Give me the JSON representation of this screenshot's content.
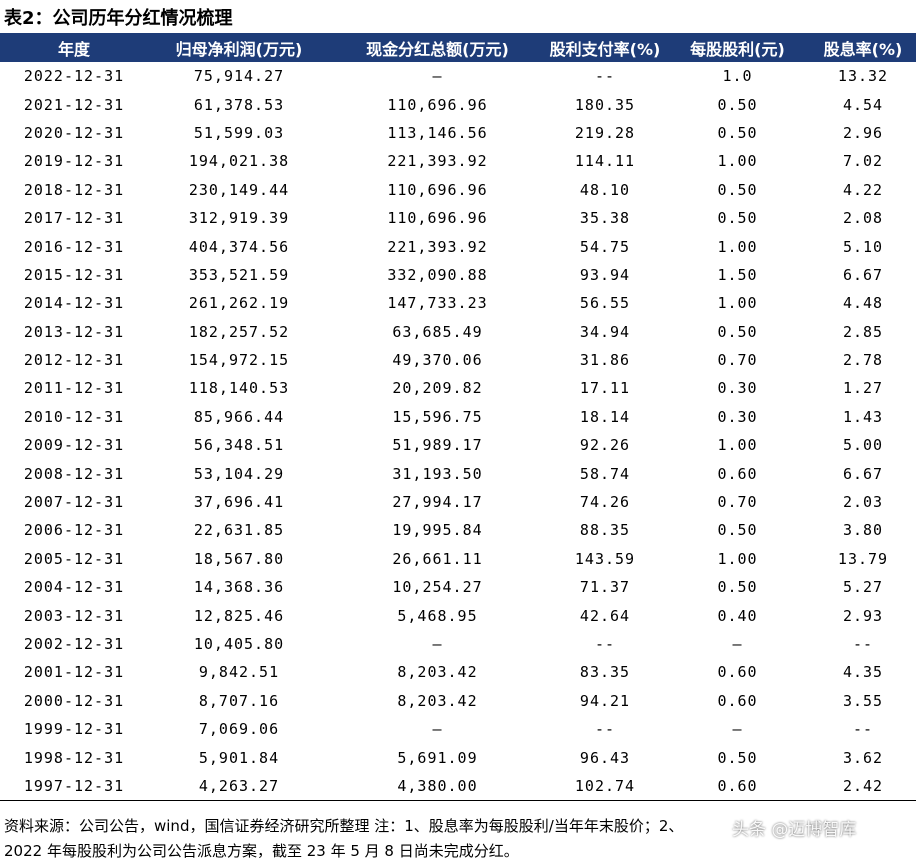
{
  "title": "表2：公司历年分红情况梳理",
  "table": {
    "header": [
      "年度",
      "归母净利润(万元)",
      "现金分红总额(万元)",
      "股利支付率(%)",
      "每股股利(元)",
      "股息率(%)"
    ],
    "rows": [
      [
        "2022-12-31",
        "75,914.27",
        "—",
        "--",
        "1.0",
        "13.32"
      ],
      [
        "2021-12-31",
        "61,378.53",
        "110,696.96",
        "180.35",
        "0.50",
        "4.54"
      ],
      [
        "2020-12-31",
        "51,599.03",
        "113,146.56",
        "219.28",
        "0.50",
        "2.96"
      ],
      [
        "2019-12-31",
        "194,021.38",
        "221,393.92",
        "114.11",
        "1.00",
        "7.02"
      ],
      [
        "2018-12-31",
        "230,149.44",
        "110,696.96",
        "48.10",
        "0.50",
        "4.22"
      ],
      [
        "2017-12-31",
        "312,919.39",
        "110,696.96",
        "35.38",
        "0.50",
        "2.08"
      ],
      [
        "2016-12-31",
        "404,374.56",
        "221,393.92",
        "54.75",
        "1.00",
        "5.10"
      ],
      [
        "2015-12-31",
        "353,521.59",
        "332,090.88",
        "93.94",
        "1.50",
        "6.67"
      ],
      [
        "2014-12-31",
        "261,262.19",
        "147,733.23",
        "56.55",
        "1.00",
        "4.48"
      ],
      [
        "2013-12-31",
        "182,257.52",
        "63,685.49",
        "34.94",
        "0.50",
        "2.85"
      ],
      [
        "2012-12-31",
        "154,972.15",
        "49,370.06",
        "31.86",
        "0.70",
        "2.78"
      ],
      [
        "2011-12-31",
        "118,140.53",
        "20,209.82",
        "17.11",
        "0.30",
        "1.27"
      ],
      [
        "2010-12-31",
        "85,966.44",
        "15,596.75",
        "18.14",
        "0.30",
        "1.43"
      ],
      [
        "2009-12-31",
        "56,348.51",
        "51,989.17",
        "92.26",
        "1.00",
        "5.00"
      ],
      [
        "2008-12-31",
        "53,104.29",
        "31,193.50",
        "58.74",
        "0.60",
        "6.67"
      ],
      [
        "2007-12-31",
        "37,696.41",
        "27,994.17",
        "74.26",
        "0.70",
        "2.03"
      ],
      [
        "2006-12-31",
        "22,631.85",
        "19,995.84",
        "88.35",
        "0.50",
        "3.80"
      ],
      [
        "2005-12-31",
        "18,567.80",
        "26,661.11",
        "143.59",
        "1.00",
        "13.79"
      ],
      [
        "2004-12-31",
        "14,368.36",
        "10,254.27",
        "71.37",
        "0.50",
        "5.27"
      ],
      [
        "2003-12-31",
        "12,825.46",
        "5,468.95",
        "42.64",
        "0.40",
        "2.93"
      ],
      [
        "2002-12-31",
        "10,405.80",
        "—",
        "--",
        "—",
        "--"
      ],
      [
        "2001-12-31",
        "9,842.51",
        "8,203.42",
        "83.35",
        "0.60",
        "4.35"
      ],
      [
        "2000-12-31",
        "8,707.16",
        "8,203.42",
        "94.21",
        "0.60",
        "3.55"
      ],
      [
        "1999-12-31",
        "7,069.06",
        "—",
        "--",
        "—",
        "--"
      ],
      [
        "1998-12-31",
        "5,901.84",
        "5,691.09",
        "96.43",
        "0.50",
        "3.62"
      ],
      [
        "1997-12-31",
        "4,263.27",
        "4,380.00",
        "102.74",
        "0.60",
        "2.42"
      ]
    ]
  },
  "note": [
    "资料来源：公司公告，wind，国信证券经济研究所整理 注：1、股息率为每股股利/当年年末股价；2、",
    "2022 年每股股利为公司公告派息方案，截至 23 年 5 月 8 日尚未完成分红。"
  ],
  "watermark": "头条 @迈博智库"
}
